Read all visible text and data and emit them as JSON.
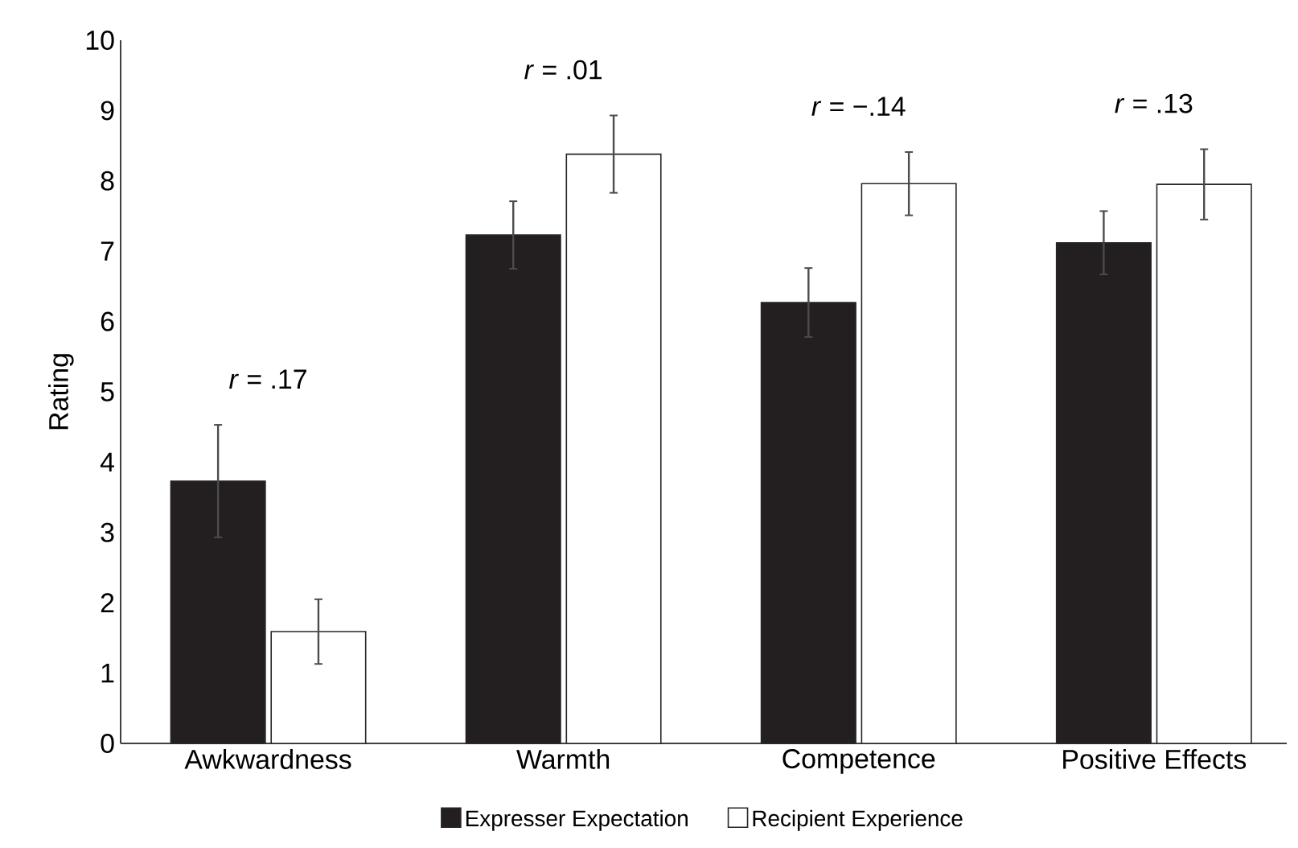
{
  "chart_data": {
    "type": "bar",
    "ylabel": "Rating",
    "categories": [
      "Awkwardness",
      "Warmth",
      "Competence",
      "Positive Effects"
    ],
    "series": [
      {
        "name": "Expresser Expectation",
        "color": "#231f20",
        "values": [
          3.73,
          7.23,
          6.27,
          7.12
        ],
        "errors": [
          0.8,
          0.48,
          0.49,
          0.45
        ]
      },
      {
        "name": "Recipient Experience",
        "color": "#ffffff",
        "values": [
          1.59,
          8.38,
          7.96,
          7.95
        ],
        "errors": [
          0.46,
          0.55,
          0.45,
          0.5
        ]
      }
    ],
    "ylim": [
      0,
      10
    ],
    "yticks": [
      0,
      1,
      2,
      3,
      4,
      5,
      6,
      7,
      8,
      9,
      10
    ],
    "legend": "bottom",
    "annotations": [
      "*r* = .17",
      "*r* = .01",
      "*r* = −.14",
      "*r* = .13"
    ]
  }
}
